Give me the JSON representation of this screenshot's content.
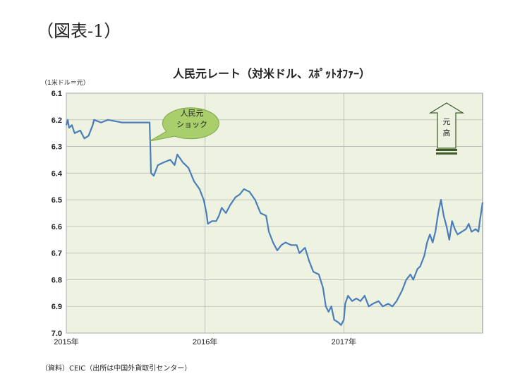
{
  "heading": "（図表-1）",
  "chart_data": {
    "type": "line",
    "title": "人民元レート（対米ドル、ｽﾎﾟｯﾄｵﾌｧｰ）",
    "y_label": "（1米ドル＝元）",
    "source": "（資料）CEIC（出所は中国外貨取引センター）",
    "annotations": [
      [
        "人民元",
        "ショック"
      ],
      [
        "元",
        "高"
      ]
    ],
    "xlim": [
      2015,
      2018
    ],
    "xticks": [
      {
        "value": 2015,
        "label": "2015年"
      },
      {
        "value": 2016,
        "label": "2016年"
      },
      {
        "value": 2017,
        "label": "2017年"
      }
    ],
    "ylim": [
      7.0,
      6.1
    ],
    "yticks": [
      6.1,
      6.2,
      6.3,
      6.4,
      6.5,
      6.6,
      6.7,
      6.8,
      6.9,
      {
        "value": 7,
        "label": "7.0"
      }
    ],
    "grid": true,
    "plot_background": "#eef3e1",
    "series": [
      {
        "name": "人民元レート",
        "color": "#4a7ebb",
        "x": [
          2015.0,
          2015.01,
          2015.02,
          2015.04,
          2015.06,
          2015.1,
          2015.13,
          2015.16,
          2015.19,
          2015.2,
          2015.25,
          2015.3,
          2015.4,
          2015.5,
          2015.6,
          2015.605,
          2015.61,
          2015.63,
          2015.66,
          2015.7,
          2015.75,
          2015.78,
          2015.8,
          2015.84,
          2015.88,
          2015.92,
          2015.96,
          2015.99,
          2016.01,
          2016.02,
          2016.05,
          2016.08,
          2016.1,
          2016.12,
          2016.15,
          2016.18,
          2016.22,
          2016.25,
          2016.28,
          2016.32,
          2016.36,
          2016.4,
          2016.44,
          2016.46,
          2016.49,
          2016.52,
          2016.55,
          2016.58,
          2016.62,
          2016.66,
          2016.68,
          2016.72,
          2016.75,
          2016.78,
          2016.82,
          2016.85,
          2016.87,
          2016.89,
          2016.91,
          2016.93,
          2016.96,
          2016.98,
          2017.0,
          2017.01,
          2017.03,
          2017.06,
          2017.09,
          2017.12,
          2017.15,
          2017.18,
          2017.21,
          2017.25,
          2017.28,
          2017.32,
          2017.35,
          2017.38,
          2017.42,
          2017.45,
          2017.48,
          2017.5,
          2017.53,
          2017.55,
          2017.58,
          2017.6,
          2017.62,
          2017.64,
          2017.66,
          2017.68,
          2017.7,
          2017.72,
          2017.74,
          2017.76,
          2017.78,
          2017.8,
          2017.82,
          2017.85,
          2017.88,
          2017.9,
          2017.92,
          2017.95,
          2017.97,
          2017.98,
          2018.0
        ],
        "values": [
          6.22,
          6.2,
          6.23,
          6.22,
          6.25,
          6.24,
          6.27,
          6.26,
          6.22,
          6.2,
          6.21,
          6.2,
          6.21,
          6.21,
          6.21,
          6.29,
          6.4,
          6.41,
          6.37,
          6.36,
          6.35,
          6.37,
          6.33,
          6.36,
          6.38,
          6.43,
          6.46,
          6.5,
          6.55,
          6.59,
          6.58,
          6.58,
          6.56,
          6.53,
          6.55,
          6.52,
          6.49,
          6.48,
          6.46,
          6.47,
          6.5,
          6.55,
          6.56,
          6.62,
          6.66,
          6.69,
          6.67,
          6.66,
          6.67,
          6.67,
          6.7,
          6.68,
          6.73,
          6.77,
          6.78,
          6.83,
          6.9,
          6.92,
          6.9,
          6.95,
          6.96,
          6.97,
          6.95,
          6.89,
          6.86,
          6.88,
          6.87,
          6.88,
          6.86,
          6.9,
          6.89,
          6.88,
          6.9,
          6.89,
          6.9,
          6.88,
          6.84,
          6.8,
          6.78,
          6.8,
          6.76,
          6.75,
          6.71,
          6.66,
          6.63,
          6.66,
          6.62,
          6.55,
          6.5,
          6.56,
          6.6,
          6.65,
          6.58,
          6.61,
          6.63,
          6.62,
          6.61,
          6.59,
          6.62,
          6.61,
          6.62,
          6.58,
          6.51
        ]
      }
    ]
  }
}
